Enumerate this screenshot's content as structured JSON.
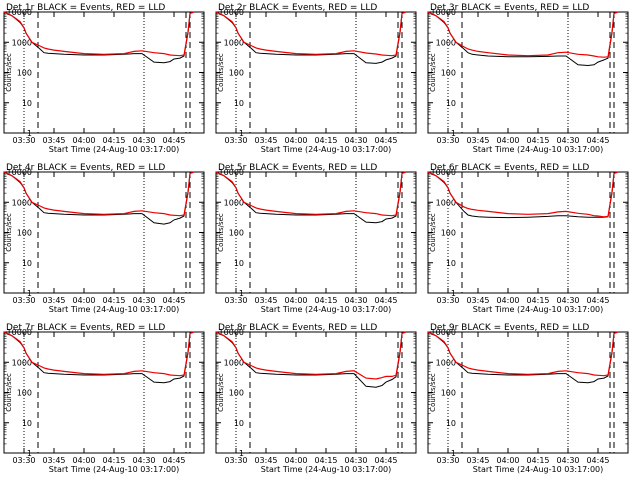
{
  "colors": {
    "events": "#000000",
    "lld": "#ee0000",
    "frame": "#000000",
    "background": "#ffffff"
  },
  "x_tick_labels": [
    "03:30",
    "03:45",
    "04:00",
    "04:15",
    "04:30",
    "04:45"
  ],
  "x_label": "Start Time (24-Aug-10 03:17:00)",
  "y_label": "Counts/sec",
  "y_tick_labels": [
    "1",
    "10",
    "100",
    "1000",
    "10000"
  ],
  "chart_data": [
    {
      "type": "line",
      "title": "Det 1r BLACK = Events, RED = LLD",
      "xlabel": "Start Time (24-Aug-10 03:17:00)",
      "ylabel": "Counts/sec",
      "x_unit": "minutes",
      "xlim": [
        0,
        100
      ],
      "ylim": [
        1,
        10000
      ],
      "yscale": "log",
      "x": [
        0,
        4,
        8,
        10,
        11,
        14,
        18,
        20,
        22,
        25,
        30,
        40,
        50,
        60,
        65,
        69,
        75,
        80,
        83,
        85,
        88,
        90,
        92,
        93,
        95
      ],
      "series": [
        {
          "name": "Events",
          "color": "#000000",
          "values": [
            10000,
            7500,
            4500,
            3000,
            2000,
            1000,
            600,
            450,
            430,
            420,
            400,
            380,
            380,
            400,
            420,
            420,
            220,
            210,
            230,
            280,
            300,
            350,
            2000,
            9000,
            10000
          ]
        },
        {
          "name": "LLD",
          "color": "#ee0000",
          "values": [
            10000,
            7500,
            4800,
            3000,
            2000,
            1000,
            750,
            650,
            600,
            550,
            500,
            420,
            400,
            420,
            500,
            520,
            450,
            420,
            380,
            370,
            360,
            380,
            2200,
            9000,
            10000
          ]
        }
      ],
      "dotted_lines_at": [
        10,
        70
      ],
      "dashed_lines_at": [
        17,
        91,
        93
      ]
    },
    {
      "type": "line",
      "title": "Det 2r BLACK = Events, RED = LLD",
      "xlabel": "Start Time (24-Aug-10 03:17:00)",
      "ylabel": "Counts/sec",
      "x_unit": "minutes",
      "xlim": [
        0,
        100
      ],
      "ylim": [
        1,
        10000
      ],
      "yscale": "log",
      "x": [
        0,
        4,
        8,
        10,
        11,
        14,
        18,
        20,
        22,
        25,
        30,
        40,
        50,
        60,
        65,
        69,
        75,
        80,
        83,
        85,
        88,
        90,
        92,
        93,
        95
      ],
      "series": [
        {
          "name": "Events",
          "color": "#000000",
          "values": [
            10000,
            7500,
            4500,
            3000,
            2000,
            1000,
            600,
            450,
            430,
            420,
            400,
            380,
            380,
            400,
            420,
            420,
            210,
            200,
            220,
            260,
            300,
            350,
            2000,
            9000,
            10000
          ]
        },
        {
          "name": "LLD",
          "color": "#ee0000",
          "values": [
            10000,
            7500,
            4800,
            3000,
            2000,
            1000,
            750,
            650,
            600,
            550,
            500,
            420,
            400,
            420,
            500,
            520,
            440,
            410,
            380,
            370,
            360,
            380,
            2200,
            9000,
            10000
          ]
        }
      ],
      "dotted_lines_at": [
        10,
        70
      ],
      "dashed_lines_at": [
        17,
        91,
        93
      ]
    },
    {
      "type": "line",
      "title": "Det 3r BLACK = Events, RED = LLD",
      "xlabel": "Start Time (24-Aug-10 03:17:00)",
      "ylabel": "Counts/sec",
      "x_unit": "minutes",
      "xlim": [
        0,
        100
      ],
      "ylim": [
        1,
        10000
      ],
      "yscale": "log",
      "x": [
        0,
        4,
        8,
        10,
        11,
        14,
        18,
        20,
        22,
        25,
        30,
        40,
        50,
        60,
        65,
        69,
        75,
        80,
        83,
        85,
        88,
        90,
        92,
        93,
        95
      ],
      "series": [
        {
          "name": "Events",
          "color": "#000000",
          "values": [
            10000,
            7500,
            4500,
            3000,
            2000,
            1000,
            600,
            450,
            400,
            380,
            350,
            330,
            330,
            340,
            350,
            350,
            180,
            170,
            180,
            220,
            260,
            300,
            2000,
            9000,
            10000
          ]
        },
        {
          "name": "LLD",
          "color": "#ee0000",
          "values": [
            10000,
            7500,
            4800,
            3000,
            2000,
            1000,
            700,
            600,
            550,
            500,
            450,
            380,
            360,
            380,
            450,
            470,
            400,
            380,
            350,
            330,
            320,
            330,
            2200,
            9000,
            10000
          ]
        }
      ],
      "dotted_lines_at": [
        10,
        70
      ],
      "dashed_lines_at": [
        17,
        91,
        93
      ]
    },
    {
      "type": "line",
      "title": "Det 4r BLACK = Events, RED = LLD",
      "xlabel": "Start Time (24-Aug-10 03:17:00)",
      "ylabel": "Counts/sec",
      "x_unit": "minutes",
      "xlim": [
        0,
        100
      ],
      "ylim": [
        1,
        10000
      ],
      "yscale": "log",
      "x": [
        0,
        4,
        8,
        10,
        11,
        14,
        18,
        20,
        22,
        25,
        30,
        40,
        50,
        60,
        65,
        69,
        75,
        80,
        83,
        85,
        88,
        90,
        92,
        93,
        95
      ],
      "series": [
        {
          "name": "Events",
          "color": "#000000",
          "values": [
            10000,
            7500,
            4500,
            3000,
            2000,
            1000,
            600,
            450,
            430,
            420,
            400,
            380,
            380,
            400,
            420,
            420,
            210,
            190,
            210,
            260,
            300,
            350,
            2000,
            9000,
            10000
          ]
        },
        {
          "name": "LLD",
          "color": "#ee0000",
          "values": [
            10000,
            7500,
            4800,
            3000,
            2000,
            1000,
            750,
            650,
            600,
            550,
            500,
            420,
            400,
            420,
            500,
            520,
            450,
            420,
            380,
            370,
            360,
            380,
            2200,
            9000,
            10000
          ]
        }
      ],
      "dotted_lines_at": [
        10,
        70
      ],
      "dashed_lines_at": [
        17,
        91,
        93
      ]
    },
    {
      "type": "line",
      "title": "Det 5r BLACK = Events, RED = LLD",
      "xlabel": "Start Time (24-Aug-10 03:17:00)",
      "ylabel": "Counts/sec",
      "x_unit": "minutes",
      "xlim": [
        0,
        100
      ],
      "ylim": [
        1,
        10000
      ],
      "yscale": "log",
      "x": [
        0,
        4,
        8,
        10,
        11,
        14,
        18,
        20,
        22,
        25,
        30,
        40,
        50,
        60,
        65,
        69,
        75,
        80,
        83,
        85,
        88,
        90,
        92,
        93,
        95
      ],
      "series": [
        {
          "name": "Events",
          "color": "#000000",
          "values": [
            10000,
            7500,
            4500,
            3000,
            2000,
            1000,
            600,
            450,
            430,
            420,
            400,
            380,
            380,
            400,
            420,
            420,
            220,
            210,
            230,
            280,
            300,
            350,
            2000,
            9000,
            10000
          ]
        },
        {
          "name": "LLD",
          "color": "#ee0000",
          "values": [
            10000,
            7500,
            4800,
            3000,
            2000,
            1000,
            750,
            650,
            600,
            550,
            500,
            420,
            400,
            420,
            500,
            520,
            450,
            420,
            380,
            370,
            360,
            380,
            2200,
            9000,
            10000
          ]
        }
      ],
      "dotted_lines_at": [
        10,
        70
      ],
      "dashed_lines_at": [
        17,
        91,
        93
      ]
    },
    {
      "type": "line",
      "title": "Det 6r BLACK = Events, RED = LLD",
      "xlabel": "Start Time (24-Aug-10 03:17:00)",
      "ylabel": "Counts/sec",
      "x_unit": "minutes",
      "xlim": [
        0,
        100
      ],
      "ylim": [
        1,
        10000
      ],
      "yscale": "log",
      "x": [
        0,
        4,
        8,
        10,
        11,
        14,
        18,
        20,
        22,
        25,
        30,
        40,
        50,
        60,
        65,
        69,
        75,
        80,
        83,
        85,
        88,
        90,
        92,
        93,
        95
      ],
      "series": [
        {
          "name": "Events",
          "color": "#000000",
          "values": [
            10000,
            7500,
            4500,
            3000,
            2000,
            1000,
            500,
            380,
            350,
            330,
            320,
            310,
            320,
            340,
            360,
            360,
            330,
            320,
            320,
            320,
            320,
            330,
            2000,
            9000,
            10000
          ]
        },
        {
          "name": "LLD",
          "color": "#ee0000",
          "values": [
            10000,
            7500,
            4800,
            3000,
            2000,
            1000,
            700,
            620,
            580,
            540,
            500,
            420,
            400,
            420,
            480,
            500,
            430,
            400,
            360,
            350,
            330,
            340,
            2200,
            9000,
            10000
          ]
        }
      ],
      "dotted_lines_at": [
        10,
        70
      ],
      "dashed_lines_at": [
        17,
        91,
        93
      ]
    },
    {
      "type": "line",
      "title": "Det 7r BLACK = Events, RED = LLD",
      "xlabel": "Start Time (24-Aug-10 03:17:00)",
      "ylabel": "Counts/sec",
      "x_unit": "minutes",
      "xlim": [
        0,
        100
      ],
      "ylim": [
        1,
        10000
      ],
      "yscale": "log",
      "x": [
        0,
        4,
        8,
        10,
        11,
        14,
        18,
        20,
        22,
        25,
        30,
        40,
        50,
        60,
        65,
        69,
        75,
        80,
        83,
        85,
        88,
        90,
        92,
        93,
        95
      ],
      "series": [
        {
          "name": "Events",
          "color": "#000000",
          "values": [
            10000,
            7500,
            4500,
            3000,
            2000,
            1000,
            600,
            450,
            430,
            420,
            400,
            380,
            380,
            400,
            420,
            420,
            220,
            210,
            230,
            280,
            300,
            350,
            2000,
            9000,
            10000
          ]
        },
        {
          "name": "LLD",
          "color": "#ee0000",
          "values": [
            10000,
            7500,
            4800,
            3000,
            2000,
            1000,
            750,
            650,
            600,
            550,
            500,
            420,
            400,
            420,
            500,
            520,
            450,
            420,
            380,
            370,
            360,
            380,
            2200,
            9000,
            10000
          ]
        }
      ],
      "dotted_lines_at": [
        10,
        70
      ],
      "dashed_lines_at": [
        17,
        91,
        93
      ]
    },
    {
      "type": "line",
      "title": "Det 8r BLACK = Events, RED = LLD",
      "xlabel": "Start Time (24-Aug-10 03:17:00)",
      "ylabel": "Counts/sec",
      "x_unit": "minutes",
      "xlim": [
        0,
        100
      ],
      "ylim": [
        1,
        10000
      ],
      "yscale": "log",
      "x": [
        0,
        4,
        8,
        10,
        11,
        14,
        18,
        20,
        22,
        25,
        30,
        40,
        50,
        60,
        65,
        69,
        75,
        80,
        83,
        85,
        88,
        90,
        92,
        93,
        95
      ],
      "series": [
        {
          "name": "Events",
          "color": "#000000",
          "values": [
            10000,
            7500,
            4500,
            3000,
            2000,
            1000,
            600,
            450,
            430,
            420,
            400,
            380,
            380,
            400,
            420,
            420,
            160,
            150,
            170,
            220,
            270,
            330,
            2000,
            9000,
            10000
          ]
        },
        {
          "name": "LLD",
          "color": "#ee0000",
          "values": [
            10000,
            7500,
            4800,
            3000,
            2000,
            1000,
            750,
            650,
            600,
            550,
            500,
            420,
            400,
            420,
            500,
            520,
            300,
            280,
            310,
            340,
            340,
            370,
            2200,
            9000,
            10000
          ]
        }
      ],
      "dotted_lines_at": [
        10,
        70
      ],
      "dashed_lines_at": [
        17,
        91,
        93
      ]
    },
    {
      "type": "line",
      "title": "Det 9r BLACK = Events, RED = LLD",
      "xlabel": "Start Time (24-Aug-10 03:17:00)",
      "ylabel": "Counts/sec",
      "x_unit": "minutes",
      "xlim": [
        0,
        100
      ],
      "ylim": [
        1,
        10000
      ],
      "yscale": "log",
      "x": [
        0,
        4,
        8,
        10,
        11,
        14,
        18,
        20,
        22,
        25,
        30,
        40,
        50,
        60,
        65,
        69,
        75,
        80,
        83,
        85,
        88,
        90,
        92,
        93,
        95
      ],
      "series": [
        {
          "name": "Events",
          "color": "#000000",
          "values": [
            10000,
            7500,
            4500,
            3000,
            2000,
            1000,
            600,
            450,
            430,
            420,
            400,
            380,
            380,
            400,
            420,
            420,
            220,
            210,
            230,
            280,
            300,
            350,
            2000,
            9000,
            10000
          ]
        },
        {
          "name": "LLD",
          "color": "#ee0000",
          "values": [
            10000,
            7500,
            4800,
            3000,
            2000,
            1000,
            750,
            650,
            600,
            550,
            500,
            420,
            400,
            420,
            500,
            520,
            450,
            420,
            380,
            370,
            360,
            380,
            2200,
            9000,
            10000
          ]
        }
      ],
      "dotted_lines_at": [
        10,
        70
      ],
      "dashed_lines_at": [
        17,
        91,
        93
      ]
    }
  ]
}
